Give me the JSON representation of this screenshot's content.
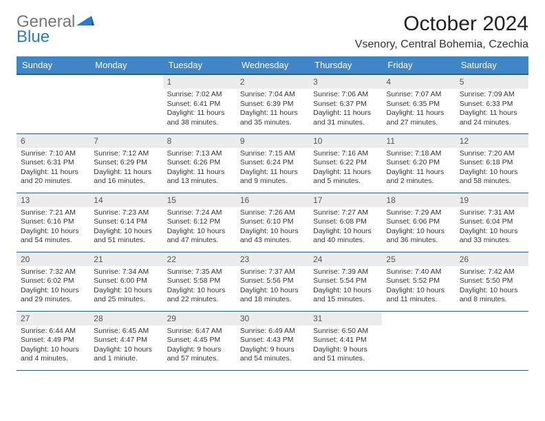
{
  "logo": {
    "part1": "General",
    "part2": "Blue"
  },
  "title": "October 2024",
  "location": "Vsenory, Central Bohemia, Czechia",
  "colors": {
    "header_bg": "#3e86c6",
    "header_border": "#2d5e8a",
    "daynum_bg": "#ececec",
    "logo_gray": "#777",
    "logo_blue": "#2b7cc1"
  },
  "weekdays": [
    "Sunday",
    "Monday",
    "Tuesday",
    "Wednesday",
    "Thursday",
    "Friday",
    "Saturday"
  ],
  "days": [
    null,
    null,
    {
      "n": "1",
      "sunrise": "7:02 AM",
      "sunset": "6:41 PM",
      "daylight": "11 hours and 38 minutes."
    },
    {
      "n": "2",
      "sunrise": "7:04 AM",
      "sunset": "6:39 PM",
      "daylight": "11 hours and 35 minutes."
    },
    {
      "n": "3",
      "sunrise": "7:06 AM",
      "sunset": "6:37 PM",
      "daylight": "11 hours and 31 minutes."
    },
    {
      "n": "4",
      "sunrise": "7:07 AM",
      "sunset": "6:35 PM",
      "daylight": "11 hours and 27 minutes."
    },
    {
      "n": "5",
      "sunrise": "7:09 AM",
      "sunset": "6:33 PM",
      "daylight": "11 hours and 24 minutes."
    },
    {
      "n": "6",
      "sunrise": "7:10 AM",
      "sunset": "6:31 PM",
      "daylight": "11 hours and 20 minutes."
    },
    {
      "n": "7",
      "sunrise": "7:12 AM",
      "sunset": "6:29 PM",
      "daylight": "11 hours and 16 minutes."
    },
    {
      "n": "8",
      "sunrise": "7:13 AM",
      "sunset": "6:26 PM",
      "daylight": "11 hours and 13 minutes."
    },
    {
      "n": "9",
      "sunrise": "7:15 AM",
      "sunset": "6:24 PM",
      "daylight": "11 hours and 9 minutes."
    },
    {
      "n": "10",
      "sunrise": "7:16 AM",
      "sunset": "6:22 PM",
      "daylight": "11 hours and 5 minutes."
    },
    {
      "n": "11",
      "sunrise": "7:18 AM",
      "sunset": "6:20 PM",
      "daylight": "11 hours and 2 minutes."
    },
    {
      "n": "12",
      "sunrise": "7:20 AM",
      "sunset": "6:18 PM",
      "daylight": "10 hours and 58 minutes."
    },
    {
      "n": "13",
      "sunrise": "7:21 AM",
      "sunset": "6:16 PM",
      "daylight": "10 hours and 54 minutes."
    },
    {
      "n": "14",
      "sunrise": "7:23 AM",
      "sunset": "6:14 PM",
      "daylight": "10 hours and 51 minutes."
    },
    {
      "n": "15",
      "sunrise": "7:24 AM",
      "sunset": "6:12 PM",
      "daylight": "10 hours and 47 minutes."
    },
    {
      "n": "16",
      "sunrise": "7:26 AM",
      "sunset": "6:10 PM",
      "daylight": "10 hours and 43 minutes."
    },
    {
      "n": "17",
      "sunrise": "7:27 AM",
      "sunset": "6:08 PM",
      "daylight": "10 hours and 40 minutes."
    },
    {
      "n": "18",
      "sunrise": "7:29 AM",
      "sunset": "6:06 PM",
      "daylight": "10 hours and 36 minutes."
    },
    {
      "n": "19",
      "sunrise": "7:31 AM",
      "sunset": "6:04 PM",
      "daylight": "10 hours and 33 minutes."
    },
    {
      "n": "20",
      "sunrise": "7:32 AM",
      "sunset": "6:02 PM",
      "daylight": "10 hours and 29 minutes."
    },
    {
      "n": "21",
      "sunrise": "7:34 AM",
      "sunset": "6:00 PM",
      "daylight": "10 hours and 25 minutes."
    },
    {
      "n": "22",
      "sunrise": "7:35 AM",
      "sunset": "5:58 PM",
      "daylight": "10 hours and 22 minutes."
    },
    {
      "n": "23",
      "sunrise": "7:37 AM",
      "sunset": "5:56 PM",
      "daylight": "10 hours and 18 minutes."
    },
    {
      "n": "24",
      "sunrise": "7:39 AM",
      "sunset": "5:54 PM",
      "daylight": "10 hours and 15 minutes."
    },
    {
      "n": "25",
      "sunrise": "7:40 AM",
      "sunset": "5:52 PM",
      "daylight": "10 hours and 11 minutes."
    },
    {
      "n": "26",
      "sunrise": "7:42 AM",
      "sunset": "5:50 PM",
      "daylight": "10 hours and 8 minutes."
    },
    {
      "n": "27",
      "sunrise": "6:44 AM",
      "sunset": "4:49 PM",
      "daylight": "10 hours and 4 minutes."
    },
    {
      "n": "28",
      "sunrise": "6:45 AM",
      "sunset": "4:47 PM",
      "daylight": "10 hours and 1 minute."
    },
    {
      "n": "29",
      "sunrise": "6:47 AM",
      "sunset": "4:45 PM",
      "daylight": "9 hours and 57 minutes."
    },
    {
      "n": "30",
      "sunrise": "6:49 AM",
      "sunset": "4:43 PM",
      "daylight": "9 hours and 54 minutes."
    },
    {
      "n": "31",
      "sunrise": "6:50 AM",
      "sunset": "4:41 PM",
      "daylight": "9 hours and 51 minutes."
    },
    null,
    null
  ],
  "labels": {
    "sunrise": "Sunrise:",
    "sunset": "Sunset:",
    "daylight": "Daylight:"
  }
}
